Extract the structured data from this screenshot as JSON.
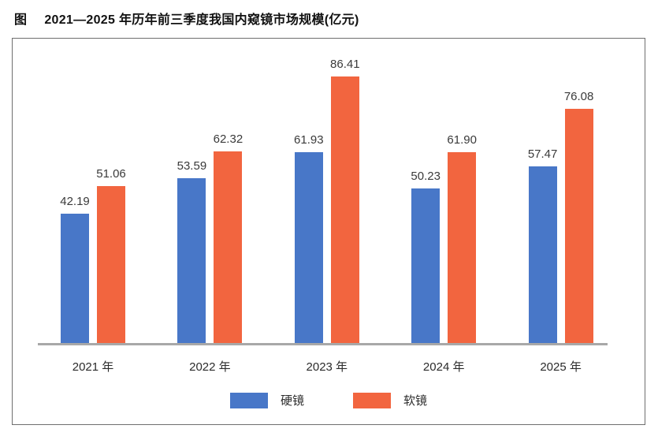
{
  "figure": {
    "label_prefix": "图",
    "title": "2021—2025 年历年前三季度我国内窥镜市场规模(亿元)"
  },
  "chart_data": {
    "type": "bar",
    "title": "2021—2025 年历年前三季度我国内窥镜市场规模(亿元)",
    "categories": [
      "2021 年",
      "2022 年",
      "2023 年",
      "2024 年",
      "2025 年"
    ],
    "series": [
      {
        "name": "硬镜",
        "color": "#4877C8",
        "values": [
          42.19,
          53.59,
          61.93,
          50.23,
          57.47
        ]
      },
      {
        "name": "软镜",
        "color": "#F2653F",
        "values": [
          51.06,
          62.32,
          86.41,
          61.9,
          76.08
        ]
      }
    ],
    "xlabel": "",
    "ylabel": "",
    "ylim": [
      0,
      95
    ],
    "grid": false,
    "axis_line_color": "#a8a8a8",
    "panel_border_color": "#6e6e6e",
    "value_label_decimals": 2,
    "legend_position": "bottom",
    "value_labels": true
  }
}
